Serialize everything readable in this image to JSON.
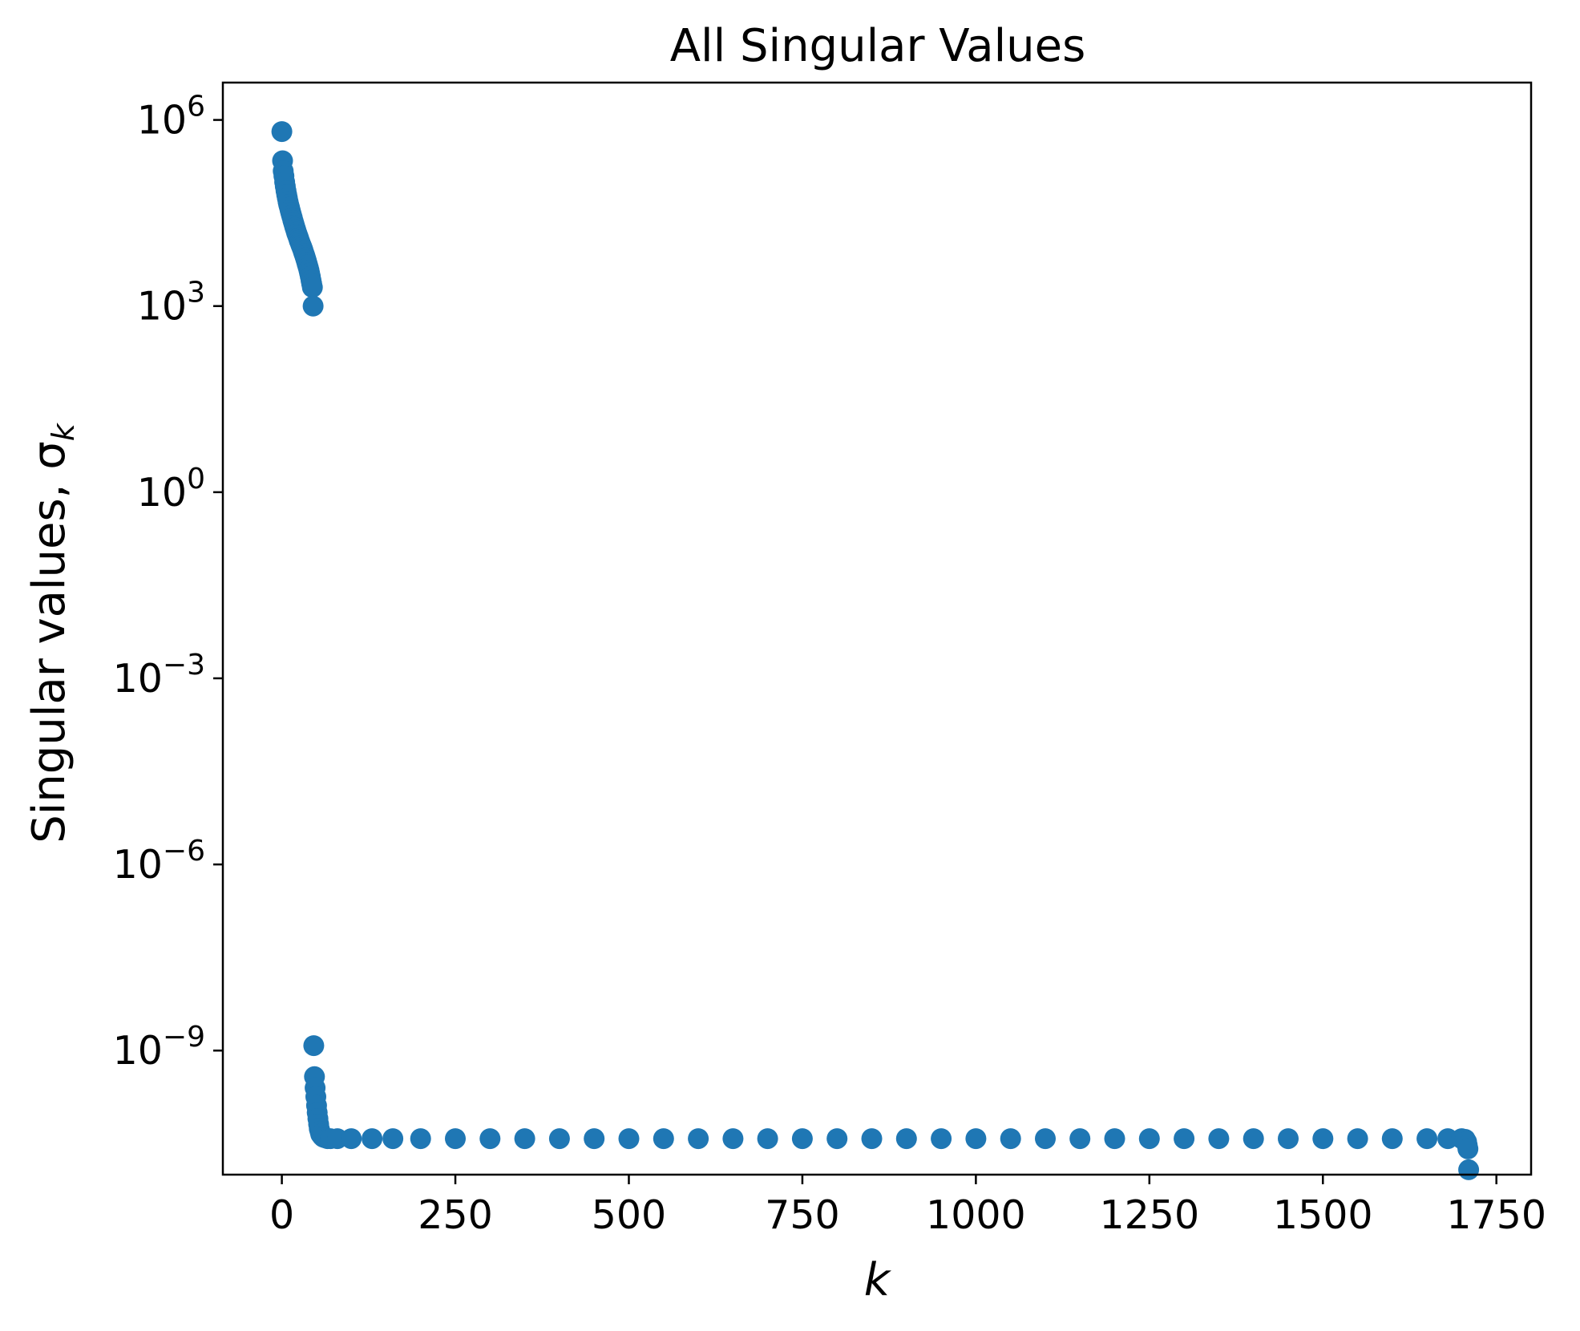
{
  "chart_data": {
    "type": "scatter",
    "title": "All Singular Values",
    "xlabel": "k",
    "ylabel": "Singular values, σ",
    "ylabel_subscript": "k",
    "x_scale": "linear",
    "y_scale": "log",
    "xlim": [
      -85,
      1800
    ],
    "ylim": [
      1e-11,
      4000000.0
    ],
    "x_ticks": [
      {
        "value": 0,
        "label": "0"
      },
      {
        "value": 250,
        "label": "250"
      },
      {
        "value": 500,
        "label": "500"
      },
      {
        "value": 750,
        "label": "750"
      },
      {
        "value": 1000,
        "label": "1000"
      },
      {
        "value": 1250,
        "label": "1250"
      },
      {
        "value": 1500,
        "label": "1500"
      },
      {
        "value": 1750,
        "label": "1750"
      }
    ],
    "y_ticks": [
      {
        "value": 1000000.0,
        "base": "10",
        "exponent": "6"
      },
      {
        "value": 1000.0,
        "base": "10",
        "exponent": "3"
      },
      {
        "value": 1,
        "base": "10",
        "exponent": "0"
      },
      {
        "value": 0.001,
        "base": "10",
        "exponent": "−3"
      },
      {
        "value": 1e-06,
        "base": "10",
        "exponent": "−6"
      },
      {
        "value": 1e-09,
        "base": "10",
        "exponent": "−9"
      }
    ],
    "grid": false,
    "marker_color": "#1f77b4",
    "series": [
      {
        "points": [
          [
            0,
            650000
          ],
          [
            1,
            220000
          ],
          [
            2,
            150000
          ],
          [
            3,
            125000
          ],
          [
            4,
            100000
          ],
          [
            5,
            85000
          ],
          [
            6,
            72000
          ],
          [
            7,
            62000
          ],
          [
            8,
            55000
          ],
          [
            9,
            48000
          ],
          [
            10,
            43000
          ],
          [
            11,
            39000
          ],
          [
            12,
            35000
          ],
          [
            13,
            32000
          ],
          [
            14,
            29000
          ],
          [
            15,
            26500
          ],
          [
            16,
            24000
          ],
          [
            17,
            22000
          ],
          [
            18,
            20000
          ],
          [
            19,
            18500
          ],
          [
            20,
            17000
          ],
          [
            21,
            15500
          ],
          [
            22,
            14500
          ],
          [
            23,
            13500
          ],
          [
            24,
            12500
          ],
          [
            25,
            11500
          ],
          [
            26,
            10800
          ],
          [
            27,
            10000
          ],
          [
            28,
            9400
          ],
          [
            29,
            8800
          ],
          [
            30,
            8200
          ],
          [
            31,
            7600
          ],
          [
            32,
            7000
          ],
          [
            33,
            6500
          ],
          [
            34,
            6000
          ],
          [
            35,
            5500
          ],
          [
            36,
            5000
          ],
          [
            37,
            4600
          ],
          [
            38,
            4200
          ],
          [
            39,
            3800
          ],
          [
            40,
            3400
          ],
          [
            41,
            3000
          ],
          [
            42,
            2600
          ],
          [
            43,
            2300
          ],
          [
            44,
            2000
          ],
          [
            45,
            1000
          ],
          [
            46,
            1.2e-09
          ],
          [
            47,
            3.8e-10
          ],
          [
            48,
            2.5e-10
          ],
          [
            49,
            1.8e-10
          ],
          [
            50,
            1.3e-10
          ],
          [
            51,
            1e-10
          ],
          [
            52,
            8e-11
          ],
          [
            53,
            6.5e-11
          ],
          [
            54,
            5.5e-11
          ],
          [
            55,
            5e-11
          ],
          [
            56,
            4.5e-11
          ],
          [
            58,
            4.2e-11
          ],
          [
            60,
            4e-11
          ],
          [
            63,
            3.9e-11
          ],
          [
            66,
            3.8e-11
          ],
          [
            70,
            3.8e-11
          ],
          [
            80,
            3.8e-11
          ],
          [
            100,
            3.8e-11
          ],
          [
            130,
            3.8e-11
          ],
          [
            160,
            3.8e-11
          ],
          [
            200,
            3.8e-11
          ],
          [
            250,
            3.8e-11
          ],
          [
            300,
            3.8e-11
          ],
          [
            350,
            3.8e-11
          ],
          [
            400,
            3.8e-11
          ],
          [
            450,
            3.8e-11
          ],
          [
            500,
            3.8e-11
          ],
          [
            550,
            3.8e-11
          ],
          [
            600,
            3.8e-11
          ],
          [
            650,
            3.8e-11
          ],
          [
            700,
            3.8e-11
          ],
          [
            750,
            3.8e-11
          ],
          [
            800,
            3.8e-11
          ],
          [
            850,
            3.8e-11
          ],
          [
            900,
            3.8e-11
          ],
          [
            950,
            3.8e-11
          ],
          [
            1000,
            3.8e-11
          ],
          [
            1050,
            3.8e-11
          ],
          [
            1100,
            3.8e-11
          ],
          [
            1150,
            3.8e-11
          ],
          [
            1200,
            3.8e-11
          ],
          [
            1250,
            3.8e-11
          ],
          [
            1300,
            3.8e-11
          ],
          [
            1350,
            3.8e-11
          ],
          [
            1400,
            3.8e-11
          ],
          [
            1450,
            3.8e-11
          ],
          [
            1500,
            3.8e-11
          ],
          [
            1550,
            3.8e-11
          ],
          [
            1600,
            3.8e-11
          ],
          [
            1650,
            3.8e-11
          ],
          [
            1680,
            3.8e-11
          ],
          [
            1700,
            3.8e-11
          ],
          [
            1705,
            3.7e-11
          ],
          [
            1707,
            3.4e-11
          ],
          [
            1708,
            3e-11
          ],
          [
            1709,
            2.6e-11
          ],
          [
            1710,
            1.2e-11
          ]
        ]
      }
    ]
  }
}
